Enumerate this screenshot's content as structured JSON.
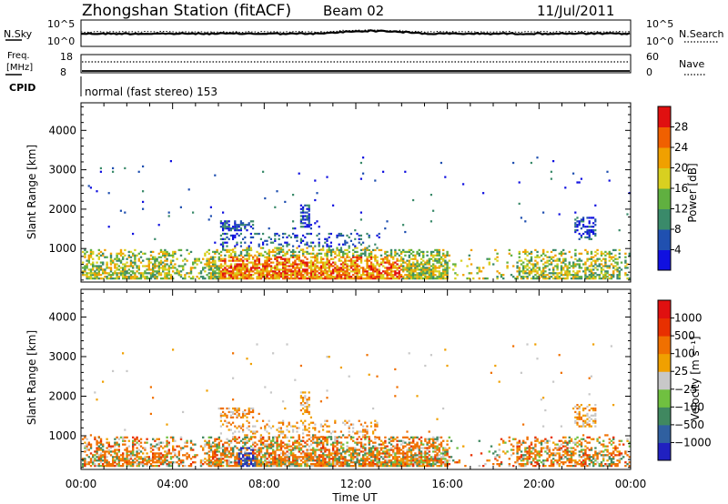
{
  "header": {
    "title": "Zhongshan Station (fitACF)",
    "beam": "Beam 02",
    "date": "11/Jul/2011"
  },
  "top_panel": {
    "left_label": "N.Sky",
    "left_ticks": [
      "10^5",
      "10^0"
    ],
    "right_label": "N.Search",
    "right_ticks": [
      "10^5",
      "10^0"
    ]
  },
  "freq_panel": {
    "left_label_1": "Freq.",
    "left_label_2": "[MHz]",
    "left_ticks": [
      "18",
      "8"
    ],
    "right_label": "Nave",
    "right_ticks": [
      "60",
      "0"
    ]
  },
  "cpid": {
    "label": "CPID",
    "text": "normal (fast stereo) 153"
  },
  "colors": {
    "power_scale": [
      "#1010e0",
      "#2050b0",
      "#3a8a6a",
      "#60b040",
      "#d8d020",
      "#f0a000",
      "#f06000",
      "#e01010"
    ],
    "velocity_scale": [
      "#2020c0",
      "#3060a0",
      "#408860",
      "#70c040",
      "#c8c8c8",
      "#f0a000",
      "#f07000",
      "#e83000",
      "#e01010"
    ]
  },
  "chart_data": [
    {
      "type": "heatmap",
      "name": "power-panel",
      "xlabel": "",
      "ylabel": "Slant Range [km]",
      "yticks": [
        "1000",
        "2000",
        "3000",
        "4000"
      ],
      "ylim": [
        150,
        4700
      ],
      "xlim": [
        0,
        24
      ],
      "colorbar_label": "Power [dB]",
      "colorbar_ticks": [
        "4",
        "8",
        "12",
        "16",
        "20",
        "24",
        "28"
      ],
      "colorbar_range": [
        0,
        32
      ]
    },
    {
      "type": "heatmap",
      "name": "velocity-panel",
      "xlabel": "Time UT",
      "ylabel": "Slant Range [km]",
      "yticks": [
        "1000",
        "2000",
        "3000",
        "4000"
      ],
      "ylim": [
        150,
        4700
      ],
      "xlim": [
        0,
        24
      ],
      "xticks": [
        "00:00",
        "04:00",
        "08:00",
        "12:00",
        "16:00",
        "20:00",
        "00:00"
      ],
      "colorbar_label": "Velocity [m s⁻¹]",
      "colorbar_ticks": [
        "1000",
        "500",
        "100",
        "25",
        "−25",
        "−100",
        "−500",
        "−1000"
      ]
    }
  ]
}
